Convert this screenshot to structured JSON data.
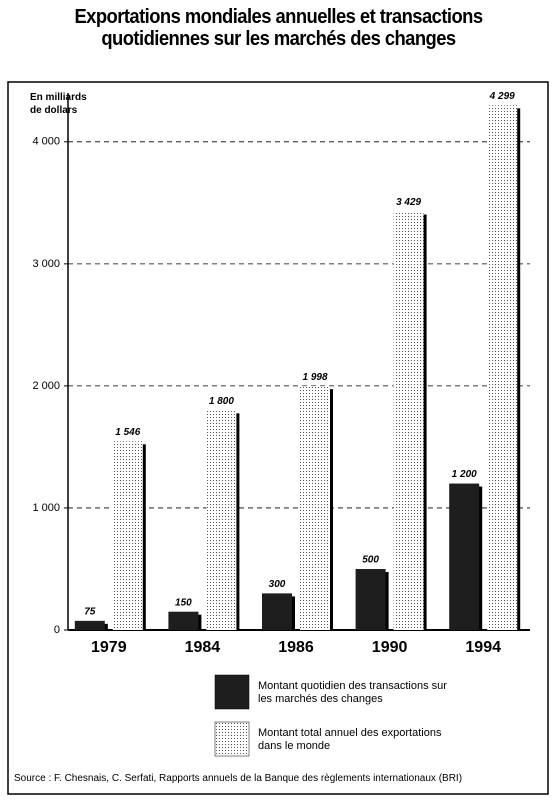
{
  "chart_data": {
    "type": "bar",
    "title": "Exportations mondiales annuelles et transactions quotidiennes sur les marchés des changes",
    "y_label": "En milliards de dollars",
    "categories": [
      "1979",
      "1984",
      "1986",
      "1990",
      "1994"
    ],
    "series": [
      {
        "name": "Montant quotidien des transactions sur les marchés des changes",
        "color": "#1e1e1e",
        "values": [
          75,
          150,
          300,
          500,
          1200
        ],
        "value_labels": [
          "75",
          "150",
          "300",
          "500",
          "1 200"
        ]
      },
      {
        "name": "Montant total annuel des exportations dans le monde",
        "color": "#cfcfcf",
        "values": [
          1546,
          1800,
          1998,
          3429,
          4299
        ],
        "value_labels": [
          "1 546",
          "1 800",
          "1 998",
          "3 429",
          "4 299"
        ]
      }
    ],
    "ylim": [
      0,
      4400
    ],
    "yticks": [
      0,
      {
        "value": 1000,
        "label": "1 000"
      },
      {
        "value": 2000,
        "label": "2 000"
      },
      {
        "value": 3000,
        "label": "3 000"
      },
      {
        "value": 4000,
        "label": "4 000"
      }
    ],
    "grid": true,
    "source": "Source : F. Chesnais, C. Serfati, Rapports annuels de la Banque des règlements internationaux (BRI)"
  }
}
